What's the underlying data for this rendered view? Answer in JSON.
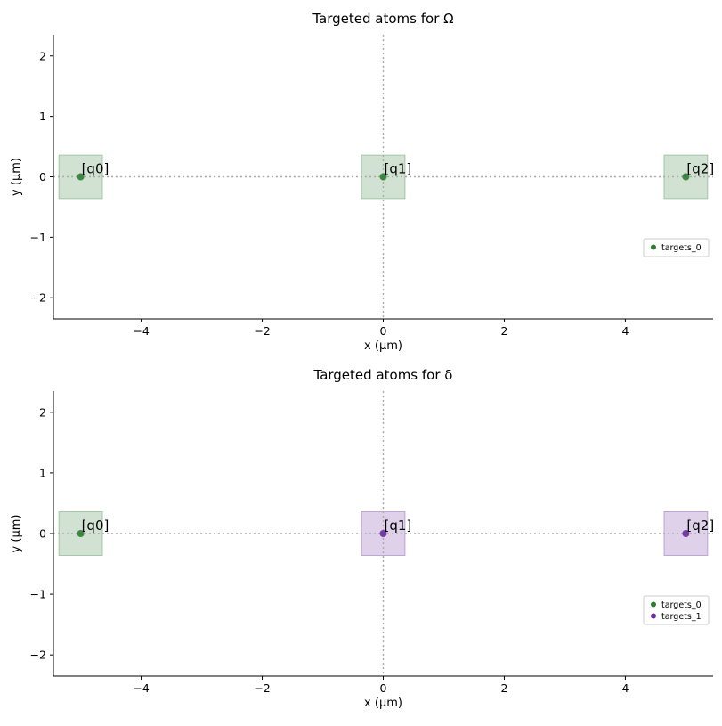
{
  "chart_data": [
    {
      "type": "scatter",
      "title": "Targeted atoms for Ω",
      "xlabel": "x (µm)",
      "ylabel": "y (µm)",
      "xlim": [
        -5.45,
        5.45
      ],
      "ylim": [
        -2.35,
        2.35
      ],
      "xticks": [
        -4,
        -2,
        0,
        2,
        4
      ],
      "xtick_labels": [
        "−4",
        "−2",
        "0",
        "2",
        "4"
      ],
      "yticks": [
        -2,
        -1,
        0,
        1,
        2
      ],
      "ytick_labels": [
        "−2",
        "−1",
        "0",
        "1",
        "2"
      ],
      "grid": false,
      "reference_lines": [
        {
          "axis": "x",
          "value": 0
        },
        {
          "axis": "y",
          "value": 0
        }
      ],
      "legend": {
        "placement": "right"
      },
      "series": [
        {
          "name": "targets_0",
          "color": "#2e7d32",
          "points": [
            {
              "x": -5,
              "y": 0,
              "label": "[q0]"
            },
            {
              "x": 0,
              "y": 0,
              "label": "[q1]"
            },
            {
              "x": 5,
              "y": 0,
              "label": "[q2]"
            }
          ]
        }
      ]
    },
    {
      "type": "scatter",
      "title": "Targeted atoms for δ",
      "xlabel": "x (µm)",
      "ylabel": "y (µm)",
      "xlim": [
        -5.45,
        5.45
      ],
      "ylim": [
        -2.35,
        2.35
      ],
      "xticks": [
        -4,
        -2,
        0,
        2,
        4
      ],
      "xtick_labels": [
        "−4",
        "−2",
        "0",
        "2",
        "4"
      ],
      "yticks": [
        -2,
        -1,
        0,
        1,
        2
      ],
      "ytick_labels": [
        "−2",
        "−1",
        "0",
        "1",
        "2"
      ],
      "grid": false,
      "reference_lines": [
        {
          "axis": "x",
          "value": 0
        },
        {
          "axis": "y",
          "value": 0
        }
      ],
      "legend": {
        "placement": "right"
      },
      "series": [
        {
          "name": "targets_0",
          "color": "#2e7d32",
          "points": [
            {
              "x": -5,
              "y": 0,
              "label": "[q0]"
            }
          ]
        },
        {
          "name": "targets_1",
          "color": "#6a2c9a",
          "points": [
            {
              "x": 0,
              "y": 0,
              "label": "[q1]"
            },
            {
              "x": 5,
              "y": 0,
              "label": "[q2]"
            }
          ]
        }
      ]
    }
  ]
}
